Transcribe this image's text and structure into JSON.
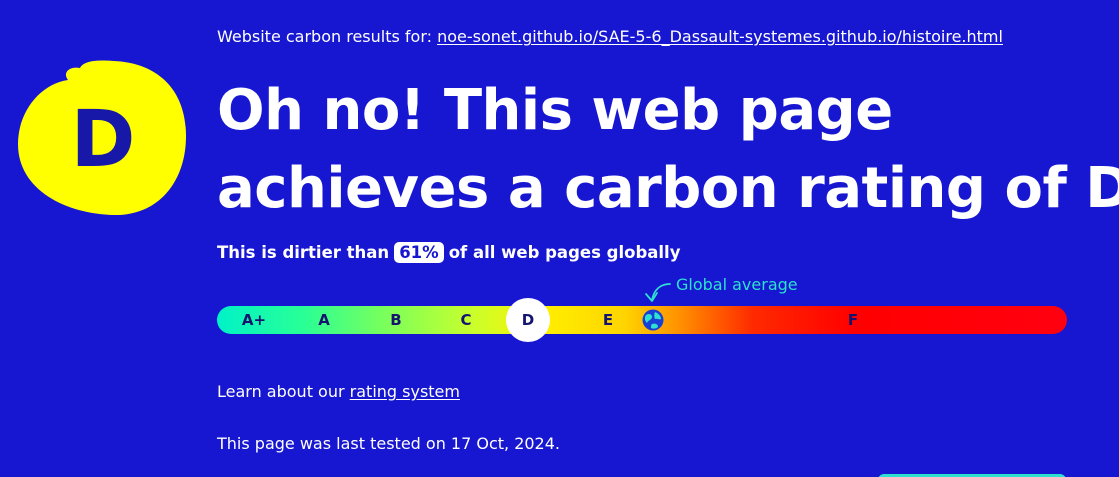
{
  "header": {
    "results_prefix": "Website carbon results for:",
    "site_url": "noe-sonet.github.io/SAE-5-6_Dassault-systemes.github.io/histoire.html"
  },
  "grade": {
    "letter": "D",
    "badge_color": "#ffff00",
    "letter_color": "#1717a8"
  },
  "headline": {
    "line1": "Oh no! This web page",
    "line2": "achieves a carbon rating of D"
  },
  "comparison": {
    "prefix": "This is dirtier than",
    "percent": "61%",
    "suffix": "of all web pages globally"
  },
  "rating_scale": {
    "labels": [
      "A+",
      "A",
      "B",
      "C",
      "D",
      "E",
      "F"
    ],
    "current": "D",
    "global_average_label": "Global average",
    "global_average_icon": "earth-globe-icon"
  },
  "learn": {
    "prefix": "Learn about our",
    "link": "rating system"
  },
  "tested": {
    "text": "This page was last tested on 17 Oct, 2024."
  },
  "colors": {
    "background": "#1717d1",
    "accent_teal": "#2de0d0",
    "text": "#ffffff"
  }
}
